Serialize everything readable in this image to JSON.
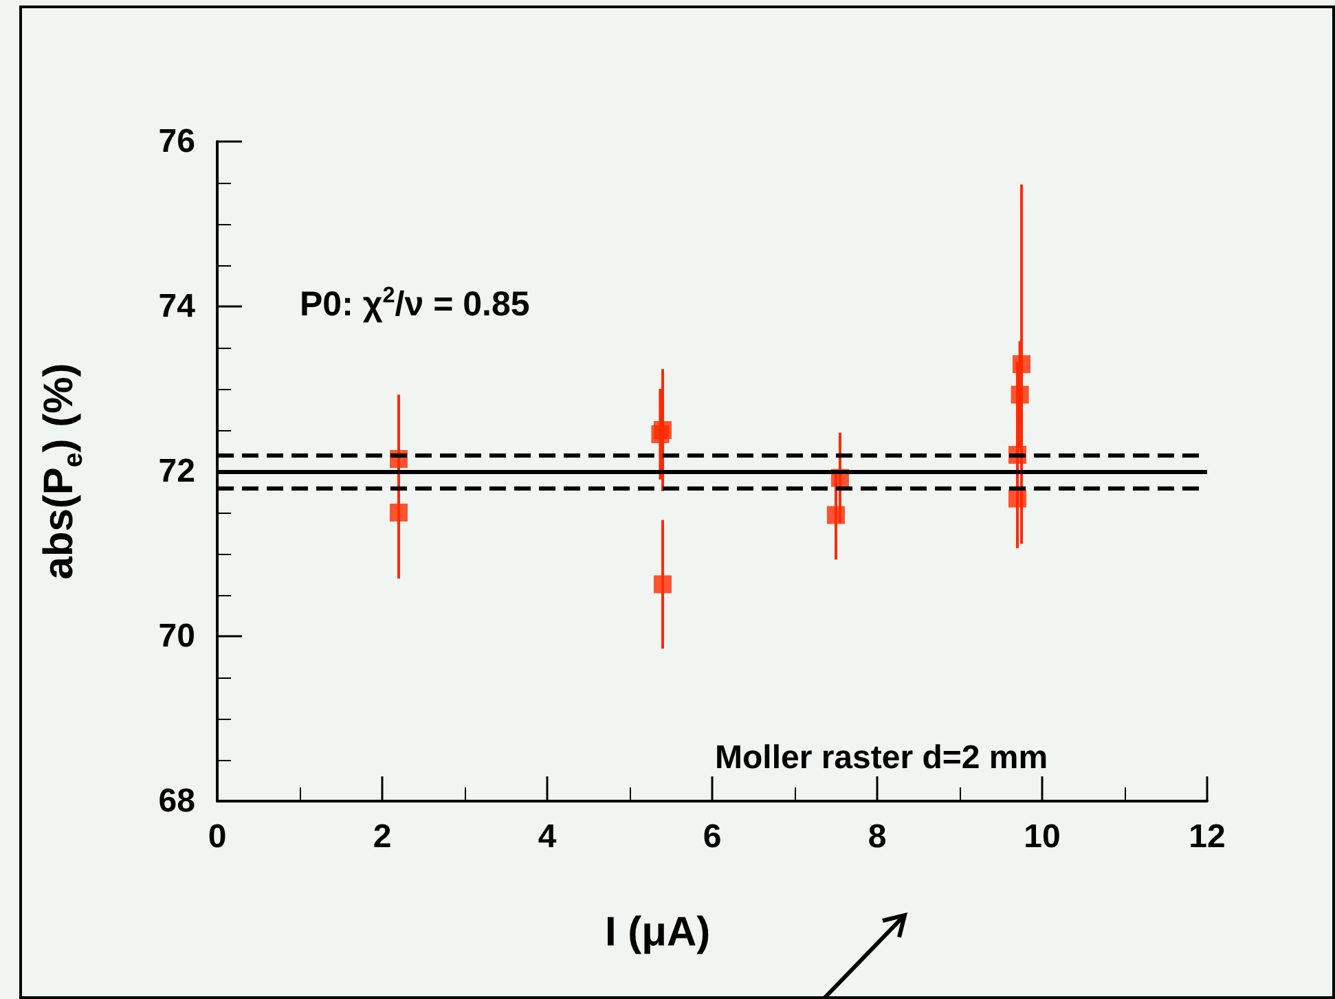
{
  "chart_data": {
    "type": "scatter",
    "xlabel": "I (μA)",
    "ylabel": "abs(P$_{e}$) (%)",
    "x": [
      2.2,
      2.2,
      5.37,
      5.4,
      5.4,
      7.55,
      7.5,
      9.75,
      9.73,
      9.7,
      9.7
    ],
    "series": [
      {
        "color": "#ff2a00",
        "values": [
          72.15,
          71.5,
          72.45,
          72.5,
          70.63,
          71.92,
          71.47,
          73.3,
          72.93,
          72.2,
          71.67
        ],
        "errors": [
          0.78,
          0.8,
          0.55,
          0.74,
          0.78,
          0.55,
          0.54,
          2.18,
          0.65,
          1.13,
          0.6
        ]
      }
    ],
    "xlim": [
      0,
      12
    ],
    "xticks": [
      0,
      2,
      4,
      6,
      8,
      10,
      12
    ],
    "ylim": [
      68,
      76
    ],
    "yticks": [
      68,
      70,
      72,
      74,
      76
    ],
    "marker": "square",
    "grid": false,
    "ref_lines": [
      {
        "axis": "y",
        "value": 72.0,
        "line_style": "solid",
        "color": "#000000"
      },
      {
        "axis": "y",
        "value": 72.2,
        "line_style": "dashed",
        "color": "#000000"
      },
      {
        "axis": "y",
        "value": 71.8,
        "line_style": "dashed",
        "color": "#000000"
      }
    ],
    "annotations": [
      "P0: χ$^{2}$/ν = 0.85",
      "Moller raster d=2 mm"
    ]
  }
}
